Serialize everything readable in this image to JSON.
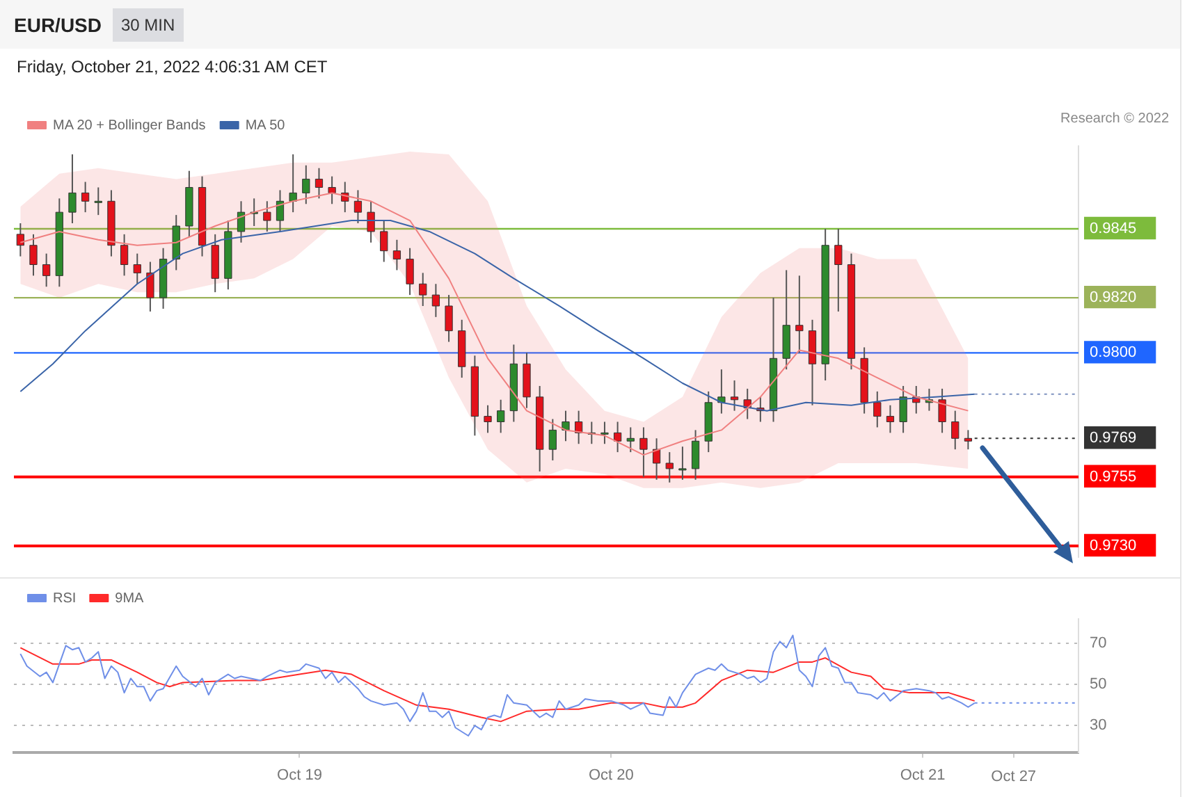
{
  "chart_data": [
    {
      "type": "candlestick",
      "title": "EUR/USD",
      "subtitle": "30 MIN",
      "annotations": [
        "Friday, October 21, 2022 4:06:31 AM CET",
        "Research © 2022"
      ],
      "x": [
        "2022-10-18T02:30",
        "2022-10-18T03:30",
        "2022-10-18T04:30",
        "2022-10-18T05:30",
        "2022-10-18T06:30",
        "2022-10-18T07:30",
        "2022-10-18T08:30",
        "2022-10-18T09:30",
        "2022-10-18T10:30",
        "2022-10-18T11:30",
        "2022-10-18T12:30",
        "2022-10-18T13:30",
        "2022-10-18T14:30",
        "2022-10-18T15:30",
        "2022-10-18T16:30",
        "2022-10-18T17:30",
        "2022-10-18T18:30",
        "2022-10-18T19:30",
        "2022-10-18T20:30",
        "2022-10-18T21:30",
        "2022-10-18T22:30",
        "2022-10-18T23:30",
        "2022-10-19T00:30",
        "2022-10-19T01:30",
        "2022-10-19T02:30",
        "2022-10-19T03:30",
        "2022-10-19T04:30",
        "2022-10-19T05:30",
        "2022-10-19T06:30",
        "2022-10-19T07:30",
        "2022-10-19T08:30",
        "2022-10-19T09:30",
        "2022-10-19T10:30",
        "2022-10-19T11:30",
        "2022-10-19T12:30",
        "2022-10-19T13:30",
        "2022-10-19T14:30",
        "2022-10-19T15:30",
        "2022-10-19T16:30",
        "2022-10-19T17:30",
        "2022-10-19T18:30",
        "2022-10-19T19:30",
        "2022-10-19T20:30",
        "2022-10-19T21:30",
        "2022-10-19T22:30",
        "2022-10-19T23:30",
        "2022-10-20T00:30",
        "2022-10-20T01:30",
        "2022-10-20T02:30",
        "2022-10-20T03:30",
        "2022-10-20T04:30",
        "2022-10-20T05:30",
        "2022-10-20T06:30",
        "2022-10-20T07:30",
        "2022-10-20T08:30",
        "2022-10-20T09:30",
        "2022-10-20T10:30",
        "2022-10-20T11:30",
        "2022-10-20T12:30",
        "2022-10-20T13:30",
        "2022-10-20T14:30",
        "2022-10-20T15:30",
        "2022-10-20T16:30",
        "2022-10-20T17:30",
        "2022-10-20T18:30",
        "2022-10-20T19:30",
        "2022-10-20T20:30",
        "2022-10-20T21:30",
        "2022-10-20T22:30",
        "2022-10-20T23:30",
        "2022-10-21T00:30",
        "2022-10-21T01:30",
        "2022-10-21T02:30",
        "2022-10-21T03:30"
      ],
      "ohlc": [
        [
          0.9843,
          0.9847,
          0.9835,
          0.9839
        ],
        [
          0.9839,
          0.9843,
          0.9828,
          0.9832
        ],
        [
          0.9832,
          0.9836,
          0.9824,
          0.9828
        ],
        [
          0.9828,
          0.9856,
          0.9824,
          0.9851
        ],
        [
          0.9851,
          0.9872,
          0.9847,
          0.9858
        ],
        [
          0.9858,
          0.9862,
          0.9851,
          0.9855
        ],
        [
          0.9855,
          0.986,
          0.985,
          0.9855
        ],
        [
          0.9855,
          0.9859,
          0.9835,
          0.9839
        ],
        [
          0.9839,
          0.9843,
          0.9828,
          0.9832
        ],
        [
          0.9832,
          0.9836,
          0.9825,
          0.9829
        ],
        [
          0.9829,
          0.9833,
          0.9815,
          0.982
        ],
        [
          0.982,
          0.9838,
          0.9816,
          0.9834
        ],
        [
          0.9834,
          0.985,
          0.983,
          0.9846
        ],
        [
          0.9846,
          0.9866,
          0.9842,
          0.986
        ],
        [
          0.986,
          0.9864,
          0.9835,
          0.9839
        ],
        [
          0.9839,
          0.9843,
          0.9822,
          0.9827
        ],
        [
          0.9827,
          0.9848,
          0.9823,
          0.9844
        ],
        [
          0.9844,
          0.9855,
          0.984,
          0.9851
        ],
        [
          0.9851,
          0.9856,
          0.9846,
          0.9851
        ],
        [
          0.9851,
          0.9855,
          0.9844,
          0.9848
        ],
        [
          0.9848,
          0.9859,
          0.9844,
          0.9855
        ],
        [
          0.9855,
          0.9872,
          0.9851,
          0.9858
        ],
        [
          0.9858,
          0.9868,
          0.9854,
          0.9863
        ],
        [
          0.9863,
          0.9867,
          0.9856,
          0.986
        ],
        [
          0.986,
          0.9864,
          0.9854,
          0.9858
        ],
        [
          0.9858,
          0.9862,
          0.9851,
          0.9855
        ],
        [
          0.9855,
          0.9859,
          0.9847,
          0.9851
        ],
        [
          0.9851,
          0.9855,
          0.984,
          0.9844
        ],
        [
          0.9844,
          0.9848,
          0.9833,
          0.9837
        ],
        [
          0.9837,
          0.9841,
          0.983,
          0.9834
        ],
        [
          0.9834,
          0.9838,
          0.9821,
          0.9825
        ],
        [
          0.9825,
          0.9829,
          0.9817,
          0.9821
        ],
        [
          0.9821,
          0.9825,
          0.9813,
          0.9817
        ],
        [
          0.9817,
          0.9821,
          0.9804,
          0.9808
        ],
        [
          0.9808,
          0.9812,
          0.9791,
          0.9795
        ],
        [
          0.9795,
          0.9799,
          0.977,
          0.9777
        ],
        [
          0.9777,
          0.9781,
          0.9771,
          0.9775
        ],
        [
          0.9775,
          0.9783,
          0.9771,
          0.9779
        ],
        [
          0.9779,
          0.9803,
          0.9775,
          0.9796
        ],
        [
          0.9796,
          0.98,
          0.978,
          0.9784
        ],
        [
          0.9784,
          0.9788,
          0.9757,
          0.9765
        ],
        [
          0.9765,
          0.9776,
          0.9761,
          0.9772
        ],
        [
          0.9772,
          0.9779,
          0.9768,
          0.9775
        ],
        [
          0.9775,
          0.9779,
          0.9767,
          0.9771
        ],
        [
          0.9771,
          0.9775,
          0.9767,
          0.9771
        ],
        [
          0.9771,
          0.9775,
          0.9767,
          0.9771
        ],
        [
          0.9771,
          0.9775,
          0.9764,
          0.9768
        ],
        [
          0.9768,
          0.9773,
          0.9764,
          0.9769
        ],
        [
          0.9769,
          0.9773,
          0.9755,
          0.9765
        ],
        [
          0.9765,
          0.9769,
          0.9754,
          0.976
        ],
        [
          0.976,
          0.9764,
          0.9753,
          0.9758
        ],
        [
          0.9758,
          0.9766,
          0.9754,
          0.9758
        ],
        [
          0.9758,
          0.9772,
          0.9754,
          0.9768
        ],
        [
          0.9768,
          0.9786,
          0.9764,
          0.9782
        ],
        [
          0.9782,
          0.9794,
          0.9778,
          0.9784
        ],
        [
          0.9784,
          0.979,
          0.9779,
          0.9783
        ],
        [
          0.9783,
          0.9787,
          0.9776,
          0.978
        ],
        [
          0.978,
          0.9784,
          0.9775,
          0.9779
        ],
        [
          0.9779,
          0.982,
          0.9775,
          0.9798
        ],
        [
          0.9798,
          0.983,
          0.9794,
          0.981
        ],
        [
          0.981,
          0.9828,
          0.98,
          0.9808
        ],
        [
          0.9808,
          0.9812,
          0.9781,
          0.9796
        ],
        [
          0.9796,
          0.9845,
          0.979,
          0.9839
        ],
        [
          0.9839,
          0.9845,
          0.9815,
          0.9832
        ],
        [
          0.9832,
          0.9836,
          0.9794,
          0.9798
        ],
        [
          0.9798,
          0.9802,
          0.9778,
          0.9782
        ],
        [
          0.9782,
          0.9786,
          0.9773,
          0.9777
        ],
        [
          0.9777,
          0.9781,
          0.9771,
          0.9775
        ],
        [
          0.9775,
          0.9788,
          0.9771,
          0.9784
        ],
        [
          0.9784,
          0.9788,
          0.9778,
          0.9782
        ],
        [
          0.9782,
          0.9787,
          0.9779,
          0.9783
        ],
        [
          0.9783,
          0.9787,
          0.9771,
          0.9775
        ],
        [
          0.9775,
          0.9779,
          0.9765,
          0.9769
        ],
        [
          0.9769,
          0.9772,
          0.9765,
          0.9768
        ]
      ],
      "series": [
        {
          "name": "MA 20 + Bollinger Bands",
          "type": "line",
          "color": "#f08080",
          "x": [
            "2022-10-18T02:30",
            "2022-10-18T05:30",
            "2022-10-18T08:30",
            "2022-10-18T11:30",
            "2022-10-18T14:30",
            "2022-10-18T17:30",
            "2022-10-18T20:30",
            "2022-10-18T23:30",
            "2022-10-19T02:30",
            "2022-10-19T05:30",
            "2022-10-19T08:30",
            "2022-10-19T11:30",
            "2022-10-19T14:30",
            "2022-10-19T17:30",
            "2022-10-19T20:30",
            "2022-10-19T23:30",
            "2022-10-20T02:30",
            "2022-10-20T05:30",
            "2022-10-20T08:30",
            "2022-10-20T11:30",
            "2022-10-20T14:30",
            "2022-10-20T17:30",
            "2022-10-20T20:30",
            "2022-10-20T23:30",
            "2022-10-21T03:30"
          ],
          "values": [
            0.984,
            0.9844,
            0.9841,
            0.9839,
            0.984,
            0.9846,
            0.9851,
            0.9855,
            0.9858,
            0.9855,
            0.9848,
            0.9827,
            0.9798,
            0.9779,
            0.9772,
            0.977,
            0.9763,
            0.9768,
            0.9772,
            0.9784,
            0.9801,
            0.9798,
            0.9791,
            0.9784,
            0.9779
          ],
          "upper": [
            0.9853,
            0.9865,
            0.9867,
            0.9865,
            0.9863,
            0.9865,
            0.9867,
            0.9869,
            0.9869,
            0.9871,
            0.9873,
            0.9872,
            0.9855,
            0.9817,
            0.9794,
            0.9779,
            0.9775,
            0.9784,
            0.9813,
            0.9829,
            0.9838,
            0.9838,
            0.9834,
            0.9834,
            0.9798
          ],
          "lower": [
            0.9825,
            0.982,
            0.9825,
            0.9822,
            0.9822,
            0.9825,
            0.9827,
            0.9834,
            0.9846,
            0.9844,
            0.9825,
            0.9791,
            0.9765,
            0.9753,
            0.9758,
            0.9756,
            0.9751,
            0.9751,
            0.9753,
            0.9751,
            0.9753,
            0.976,
            0.976,
            0.976,
            0.9758
          ]
        },
        {
          "name": "MA 50",
          "type": "line",
          "color": "#3a64a8",
          "x": [
            "2022-10-18T02:30",
            "2022-10-18T05:00",
            "2022-10-18T07:30",
            "2022-10-18T11:30",
            "2022-10-18T15:00",
            "2022-10-18T18:00",
            "2022-10-18T22:30",
            "2022-10-19T04:00",
            "2022-10-19T07:00",
            "2022-10-19T10:00",
            "2022-10-19T13:30",
            "2022-10-19T16:30",
            "2022-10-19T20:00",
            "2022-10-19T23:00",
            "2022-10-20T02:30",
            "2022-10-20T05:30",
            "2022-10-20T08:30",
            "2022-10-20T12:00",
            "2022-10-20T15:00",
            "2022-10-20T18:30",
            "2022-10-20T21:30",
            "2022-10-21T01:00",
            "2022-10-21T04:00"
          ],
          "values": [
            0.9786,
            0.9796,
            0.9808,
            0.9825,
            0.9836,
            0.9841,
            0.9844,
            0.9848,
            0.9848,
            0.9844,
            0.9836,
            0.9827,
            0.9817,
            0.9808,
            0.9798,
            0.9789,
            0.9782,
            0.9779,
            0.9782,
            0.9781,
            0.9783,
            0.9784,
            0.9785
          ]
        },
        {
          "type": "line",
          "color": "#7f93c0",
          "line_style": "dotted",
          "x": [
            "2022-10-21T04:00",
            "2022-10-21T12:00"
          ],
          "values": [
            0.9785,
            0.9785
          ]
        },
        {
          "type": "line",
          "color": "#333333",
          "line_style": "dotted",
          "x": [
            "2022-10-21T04:00",
            "2022-10-21T12:00"
          ],
          "values": [
            0.9769,
            0.9769
          ]
        }
      ],
      "ref_lines": [
        {
          "axis": "y",
          "value": 0.9845,
          "color": "#7dbb3c"
        },
        {
          "axis": "y",
          "value": 0.982,
          "color": "#9cb35a"
        },
        {
          "axis": "y",
          "value": 0.98,
          "color": "#1f66ff"
        },
        {
          "axis": "y",
          "value": 0.9755,
          "color": "#ff0000"
        },
        {
          "axis": "y",
          "value": 0.973,
          "color": "#ff0000"
        }
      ],
      "xlim": [
        "2022-10-18T02:00",
        "2022-10-21T12:00"
      ],
      "xticks": [
        "2022-10-19",
        "2022-10-20",
        "2022-10-21"
      ],
      "ylim": [
        0.9726,
        0.9875
      ],
      "yticks": [
        {
          "value": 0.973,
          "label": "0.9730"
        },
        {
          "value": 0.9755,
          "label": "0.9755"
        },
        {
          "value": 0.9769,
          "label": "0.9769"
        },
        {
          "value": 0.98,
          "label": "0.9800"
        },
        {
          "value": 0.982,
          "label": "0.9820"
        },
        {
          "value": 0.9845,
          "label": "0.9845"
        }
      ],
      "legend": "top left",
      "tick_labels": "y"
    },
    {
      "type": "line",
      "series": [
        {
          "name": "RSI",
          "color": "#6f8fe8",
          "x": [
            "2022-10-18T02:30",
            "2022-10-18T03:00",
            "2022-10-18T04:00",
            "2022-10-18T04:30",
            "2022-10-18T05:00",
            "2022-10-18T06:00",
            "2022-10-18T06:30",
            "2022-10-18T07:00",
            "2022-10-18T07:30",
            "2022-10-18T08:00",
            "2022-10-18T08:30",
            "2022-10-18T09:00",
            "2022-10-18T09:30",
            "2022-10-18T10:00",
            "2022-10-18T10:30",
            "2022-10-18T11:00",
            "2022-10-18T11:30",
            "2022-10-18T12:00",
            "2022-10-18T12:30",
            "2022-10-18T13:00",
            "2022-10-18T13:30",
            "2022-10-18T14:30",
            "2022-10-18T15:00",
            "2022-10-18T16:00",
            "2022-10-18T16:30",
            "2022-10-18T17:00",
            "2022-10-18T17:30",
            "2022-10-18T18:30",
            "2022-10-18T19:00",
            "2022-10-18T19:30",
            "2022-10-18T21:00",
            "2022-10-18T21:30",
            "2022-10-18T22:30",
            "2022-10-18T23:00",
            "2022-10-19T00:00",
            "2022-10-19T00:30",
            "2022-10-19T01:30",
            "2022-10-19T02:00",
            "2022-10-19T02:30",
            "2022-10-19T03:00",
            "2022-10-19T03:30",
            "2022-10-19T04:30",
            "2022-10-19T05:00",
            "2022-10-19T05:30",
            "2022-10-19T06:30",
            "2022-10-19T07:30",
            "2022-10-19T08:00",
            "2022-10-19T08:30",
            "2022-10-19T09:00",
            "2022-10-19T09:30",
            "2022-10-19T10:00",
            "2022-10-19T10:30",
            "2022-10-19T11:00",
            "2022-10-19T11:30",
            "2022-10-19T12:00",
            "2022-10-19T13:00",
            "2022-10-19T13:30",
            "2022-10-19T14:00",
            "2022-10-19T14:30",
            "2022-10-19T15:00",
            "2022-10-19T15:30",
            "2022-10-19T16:00",
            "2022-10-19T16:30",
            "2022-10-19T17:30",
            "2022-10-19T18:30",
            "2022-10-19T19:00",
            "2022-10-19T19:30",
            "2022-10-19T20:00",
            "2022-10-19T20:30",
            "2022-10-19T21:30",
            "2022-10-19T22:00",
            "2022-10-19T23:00",
            "2022-10-20T00:00",
            "2022-10-20T01:00",
            "2022-10-20T01:30",
            "2022-10-20T02:30",
            "2022-10-20T03:00",
            "2022-10-20T04:00",
            "2022-10-20T04:30",
            "2022-10-20T05:00",
            "2022-10-20T05:30",
            "2022-10-20T06:30",
            "2022-10-20T07:30",
            "2022-10-20T08:00",
            "2022-10-20T08:30",
            "2022-10-20T09:00",
            "2022-10-20T10:00",
            "2022-10-20T10:30",
            "2022-10-20T11:00",
            "2022-10-20T11:30",
            "2022-10-20T12:00",
            "2022-10-20T12:30",
            "2022-10-20T13:00",
            "2022-10-20T13:30",
            "2022-10-20T14:00",
            "2022-10-20T14:30",
            "2022-10-20T15:00",
            "2022-10-20T15:30",
            "2022-10-20T16:00",
            "2022-10-20T16:30",
            "2022-10-20T17:00",
            "2022-10-20T17:30",
            "2022-10-20T18:00",
            "2022-10-20T18:30",
            "2022-10-20T19:00",
            "2022-10-20T20:00",
            "2022-10-20T20:30",
            "2022-10-20T21:00",
            "2022-10-20T21:30",
            "2022-10-20T22:30",
            "2022-10-20T23:30",
            "2022-10-21T00:30",
            "2022-10-21T01:00",
            "2022-10-21T01:30",
            "2022-10-21T02:00",
            "2022-10-21T03:00",
            "2022-10-21T03:30",
            "2022-10-21T04:00"
          ],
          "values": [
            65,
            59,
            54,
            56,
            51,
            69,
            67,
            68,
            61,
            63,
            66,
            53,
            59,
            56,
            46,
            53,
            49,
            49,
            42,
            47,
            48,
            59,
            54,
            49,
            53,
            45,
            51,
            55,
            53,
            54,
            52,
            54,
            57,
            56,
            57,
            60,
            58,
            53,
            56,
            51,
            54,
            48,
            44,
            42,
            40,
            41,
            38,
            32,
            37,
            46,
            37,
            37,
            34,
            37,
            29,
            25,
            30,
            28,
            34,
            35,
            34,
            45,
            41,
            40,
            34,
            36,
            34,
            42,
            38,
            40,
            43,
            42,
            42,
            40,
            38,
            41,
            36,
            35,
            44,
            39,
            46,
            55,
            58,
            57,
            60,
            57,
            55,
            53,
            54,
            51,
            53,
            66,
            71,
            68,
            74,
            57,
            54,
            49,
            64,
            68,
            59,
            58,
            51,
            51,
            46,
            45,
            43,
            46,
            42,
            47,
            48,
            47,
            46,
            43,
            44,
            41,
            39,
            41
          ]
        },
        {
          "name": "9MA",
          "color": "#ff2a2a",
          "x": [
            "2022-10-18T02:30",
            "2022-10-18T05:00",
            "2022-10-18T07:00",
            "2022-10-18T08:00",
            "2022-10-18T09:30",
            "2022-10-18T11:30",
            "2022-10-18T13:00",
            "2022-10-18T14:00",
            "2022-10-18T15:00",
            "2022-10-18T19:00",
            "2022-10-18T21:00",
            "2022-10-19T00:00",
            "2022-10-19T02:00",
            "2022-10-19T04:00",
            "2022-10-19T06:30",
            "2022-10-19T09:00",
            "2022-10-19T11:30",
            "2022-10-19T14:00",
            "2022-10-19T15:30",
            "2022-10-19T17:30",
            "2022-10-19T20:00",
            "2022-10-19T21:30",
            "2022-10-20T00:00",
            "2022-10-20T02:30",
            "2022-10-20T04:00",
            "2022-10-20T05:30",
            "2022-10-20T06:30",
            "2022-10-20T08:30",
            "2022-10-20T10:30",
            "2022-10-20T12:30",
            "2022-10-20T14:30",
            "2022-10-20T15:30",
            "2022-10-20T16:30",
            "2022-10-20T18:30",
            "2022-10-20T20:00",
            "2022-10-20T21:00",
            "2022-10-20T23:00",
            "2022-10-21T02:00",
            "2022-10-21T03:00",
            "2022-10-21T04:00"
          ],
          "values": [
            68,
            60,
            60,
            62,
            62,
            56,
            51,
            49,
            51,
            52,
            52,
            55,
            57,
            55,
            47,
            40,
            38,
            34,
            32,
            37,
            38,
            38,
            41,
            41,
            39,
            39,
            41,
            52,
            57,
            56,
            61,
            61,
            63,
            56,
            54,
            48,
            46,
            46,
            44,
            42
          ]
        },
        {
          "color": "#6f8fe8",
          "line_style": "dotted",
          "x": [
            "2022-10-21T04:00",
            "2022-10-21T12:00"
          ],
          "values": [
            41,
            41
          ]
        }
      ],
      "xlim": [
        "2022-10-18T02:00",
        "2022-10-21T12:00"
      ],
      "xticks": [
        {
          "value": "2022-10-19",
          "label": "Oct 19"
        },
        {
          "value": "2022-10-20",
          "label": "Oct 20"
        },
        {
          "value": "2022-10-21",
          "label": "Oct 21"
        },
        {
          "value": "2022-10-21T07:00",
          "label": null
        }
      ],
      "annotations": [
        "Oct 27"
      ],
      "ylim": [
        17,
        82
      ],
      "yticks": [
        30,
        50,
        70
      ],
      "grid": "y",
      "legend": "top left"
    }
  ]
}
